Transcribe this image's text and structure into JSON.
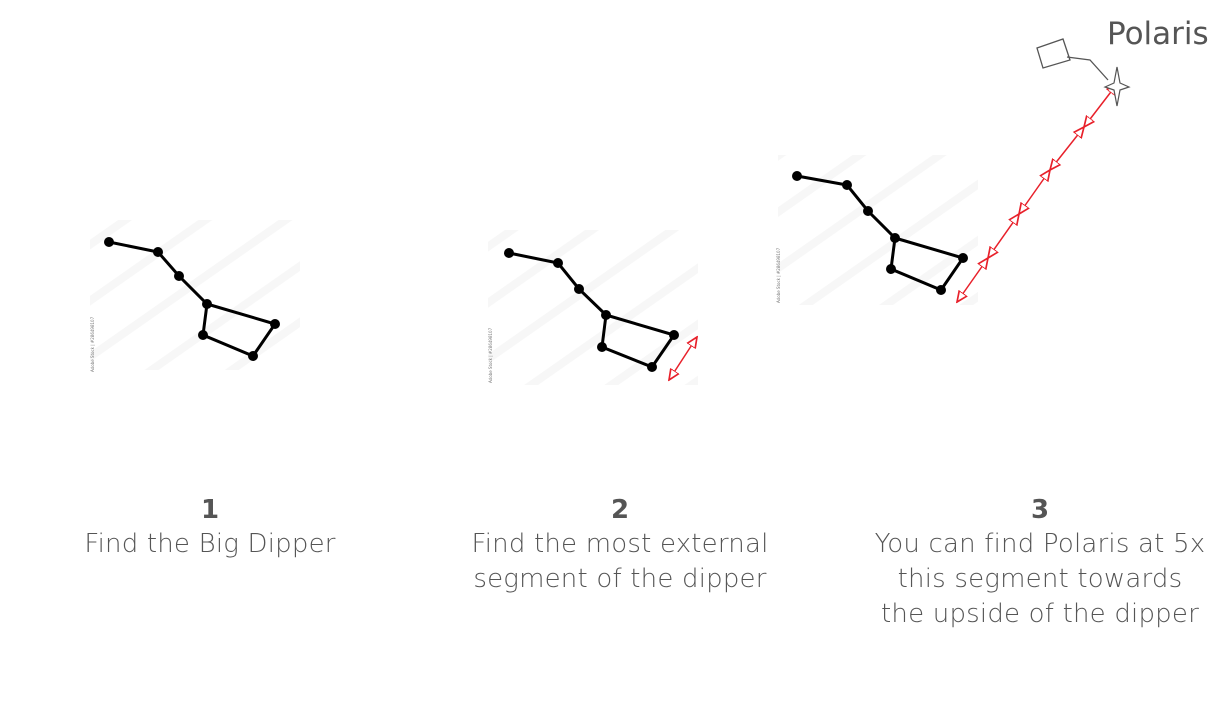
{
  "polaris": {
    "label": "Polaris"
  },
  "steps": [
    {
      "number": "1",
      "text_lines": [
        "Find the Big Dipper"
      ]
    },
    {
      "number": "2",
      "text_lines": [
        "Find the most external",
        "segment of the dipper"
      ]
    },
    {
      "number": "3",
      "text_lines": [
        "You can find Polaris at 5x",
        "this segment towards",
        "the upside of the dipper"
      ]
    }
  ],
  "stock_credit": "Adobe Stock | #286498107",
  "colors": {
    "constellation": "#000000",
    "pointer_arrow": "#e8202a",
    "text": "#555555",
    "watermark": "#f3f3f3"
  },
  "icons": {
    "star_marker": "polaris-star-icon",
    "telescope": "telescope-icon"
  }
}
